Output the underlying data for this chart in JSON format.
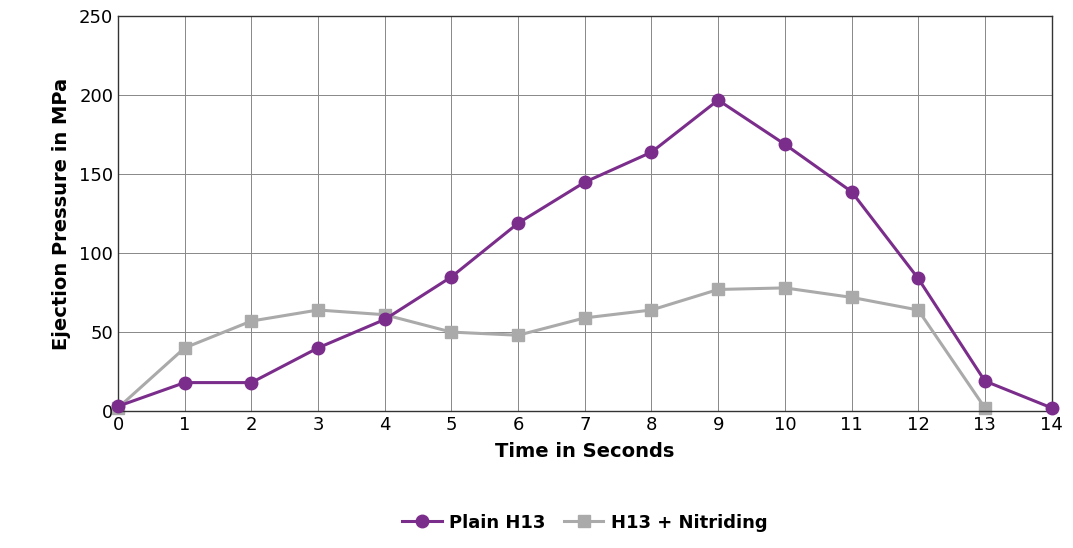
{
  "time": [
    0,
    1,
    2,
    3,
    4,
    5,
    6,
    7,
    8,
    9,
    10,
    11,
    12,
    13,
    14
  ],
  "plain_h13": [
    3,
    18,
    18,
    40,
    58,
    85,
    119,
    145,
    164,
    197,
    169,
    139,
    84,
    19,
    2
  ],
  "h13_nitriding": [
    2,
    40,
    57,
    64,
    61,
    50,
    48,
    59,
    64,
    77,
    78,
    72,
    64,
    2,
    null
  ],
  "plain_h13_color": "#7B2D8B",
  "h13_nitriding_color": "#AAAAAA",
  "xlabel": "Time in Seconds",
  "ylabel": "Ejection Pressure in MPa",
  "ylim": [
    0,
    250
  ],
  "xlim": [
    0,
    14
  ],
  "yticks": [
    0,
    50,
    100,
    150,
    200,
    250
  ],
  "xticks": [
    0,
    1,
    2,
    3,
    4,
    5,
    6,
    7,
    8,
    9,
    10,
    11,
    12,
    13,
    14
  ],
  "legend_plain": "Plain H13",
  "legend_nitriding": "H13 + Nitriding",
  "background_color": "#FFFFFF",
  "grid_color": "#888888",
  "marker_size": 9,
  "line_width": 2.2,
  "font_family": "Arial"
}
